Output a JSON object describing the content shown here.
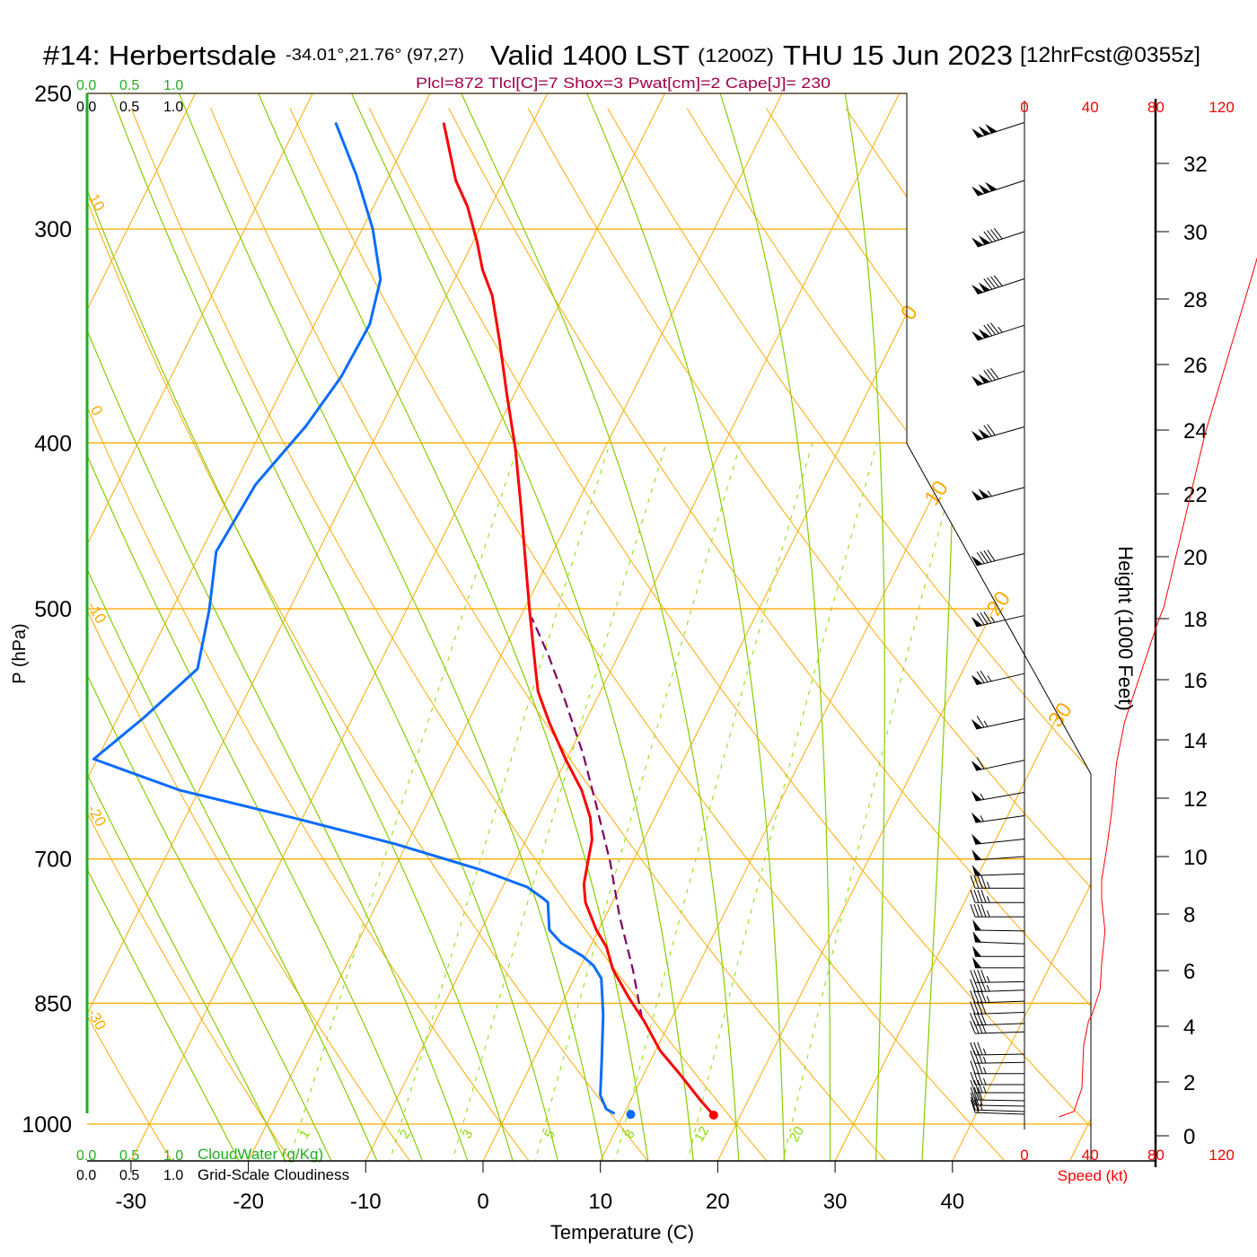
{
  "title": {
    "station": "#14: Herbertsdale",
    "coords": "-34.01°,21.76° (97,27)",
    "valid": "Valid 1400 LST",
    "utc": "(1200Z)",
    "date": "THU 15 Jun 2023",
    "forecast": "[12hrFcst@0355z]"
  },
  "indices": "Plcl=872 Tlcl[C]=7 Shox=3 Pwat[cm]=2 Cape[J]= 230",
  "cloud_scale": {
    "cloudwater_ticks": [
      "0.0",
      "0.5",
      "1.0"
    ],
    "cloudiness_ticks": [
      "0.0",
      "0.5",
      "1.0"
    ],
    "cloudwater_label": "CloudWater (g/Kg)",
    "cloudiness_label": "Grid-Scale Cloudiness"
  },
  "colors": {
    "temperature": "#ff0000",
    "dewpoint": "#0a6cff",
    "parcel": "#800060",
    "isotherm": "#ffaa00",
    "moist_adiabat": "#88cc00",
    "mixing_ratio": "#88dd00",
    "cloudwater": "#1fae1f",
    "indices": "#a0004a",
    "speed": "#ff0000"
  },
  "chart_data": {
    "type": "line",
    "subtype": "skew-t log-p",
    "xlabel": "Temperature (C)",
    "ylabel": "P (hPa)",
    "xlim_at_bottom": [
      -34,
      52
    ],
    "ylim": [
      1050,
      250
    ],
    "pressure_ticks": [
      "250",
      "300",
      "400",
      "500",
      "700",
      "850",
      "1000"
    ],
    "temp_ticks": [
      "-30",
      "-20",
      "-10",
      "0",
      "10",
      "20",
      "30",
      "40"
    ],
    "isotherm_labels": [
      "0",
      "10",
      "20",
      "30"
    ],
    "dry_adiabat_labels": [
      "10",
      "0",
      "-10",
      "-20",
      "-30"
    ],
    "mixing_ratio_labels": [
      "1",
      "2",
      "3",
      "5",
      "8",
      "12",
      "20"
    ],
    "temperature": {
      "name": "Temperature",
      "p": [
        988,
        968,
        933,
        906,
        871,
        844,
        812,
        788,
        770,
        742,
        724,
        703,
        682,
        662,
        638,
        612,
        583,
        559,
        542,
        501,
        472,
        434,
        403,
        375,
        349,
        328,
        317,
        305,
        291,
        281,
        260
      ],
      "t": [
        17.7,
        15.9,
        12.9,
        10.4,
        7.8,
        5.5,
        2.9,
        1.4,
        -0.2,
        -2.3,
        -3.2,
        -3.8,
        -4.4,
        -5.5,
        -7.4,
        -10.1,
        -13.0,
        -15.3,
        -16.5,
        -19.5,
        -21.7,
        -24.8,
        -27.6,
        -30.6,
        -33.5,
        -36.1,
        -38.0,
        -39.7,
        -42.0,
        -44.1,
        -47.6
      ]
    },
    "dewpoint": {
      "name": "Dewpoint",
      "p": [
        986,
        980,
        962,
        917,
        863,
        822,
        808,
        798,
        784,
        770,
        742,
        738,
        727,
        710,
        686,
        663,
        638,
        612,
        579,
        542,
        501,
        463,
        423,
        391,
        366,
        341,
        321,
        300,
        279,
        260
      ],
      "t": [
        9.2,
        8.3,
        7.2,
        5.8,
        4.0,
        2.3,
        1.1,
        -0.2,
        -2.6,
        -4.2,
        -5.5,
        -6.1,
        -7.9,
        -12.7,
        -21.0,
        -30.5,
        -41.7,
        -50.3,
        -47.8,
        -45.3,
        -46.8,
        -48.7,
        -48.2,
        -46.4,
        -45.5,
        -45.3,
        -46.3,
        -49.1,
        -52.8,
        -56.8
      ]
    },
    "parcel": {
      "name": "Parcel",
      "p": [
        868,
        812,
        756,
        703,
        654,
        608,
        566,
        532,
        506
      ],
      "t": [
        7.5,
        4.6,
        1.2,
        -1.9,
        -5.3,
        -8.8,
        -12.6,
        -16.0,
        -19.0
      ]
    },
    "surface_temperature": {
      "p": 988,
      "t": 17.7
    },
    "surface_dewpoint": {
      "p": 987,
      "t": 10.6
    },
    "wind": {
      "speed_label": "Speed (kt)",
      "height_label": "Height (1000 Feet)",
      "speed_ticks": [
        "0",
        "40",
        "80",
        "120"
      ],
      "height_ticks": [
        "0",
        "2",
        "4",
        "6",
        "8",
        "10",
        "12",
        "14",
        "16",
        "18",
        "20",
        "22",
        "24",
        "26",
        "28",
        "30",
        "32"
      ],
      "speed_profile": {
        "height_kft": [
          0.7,
          0.9,
          1.77,
          3.3,
          4.2,
          4.4,
          5.3,
          6.25,
          7.4,
          8.5,
          9.2,
          10.25,
          11.5,
          13.2,
          14.6,
          17.7,
          18.4,
          23.9,
          29.1,
          30.0
        ],
        "speed_kt": [
          21,
          30,
          35,
          36,
          39,
          41,
          46,
          47,
          49,
          47,
          47,
          50,
          53,
          56,
          61,
          80,
          85,
          110,
          141,
          146
        ]
      },
      "barbs": {
        "height_kft": [
          33.2,
          31.5,
          30.0,
          28.6,
          27.2,
          25.8,
          24.1,
          22.2,
          20.1,
          18.1,
          16.2,
          14.7,
          13.3,
          12.2,
          11.4,
          10.6,
          10.0,
          9.4,
          8.9,
          8.4,
          7.9,
          7.4,
          6.95,
          6.5,
          6.1,
          5.6,
          5.3,
          4.9,
          4.5,
          4.1,
          3.8,
          3.0,
          2.7,
          2.3,
          1.9,
          1.6,
          1.3,
          1.1,
          0.9,
          0.8
        ],
        "speed_kt": [
          150,
          150,
          140,
          140,
          135,
          130,
          120,
          105,
          90,
          85,
          75,
          65,
          60,
          55,
          55,
          50,
          50,
          50,
          45,
          45,
          45,
          50,
          50,
          50,
          50,
          45,
          45,
          45,
          40,
          40,
          40,
          35,
          35,
          35,
          35,
          35,
          30,
          30,
          25,
          20
        ],
        "direction_deg": [
          252,
          252,
          252,
          252,
          252,
          253,
          254,
          255,
          256,
          257,
          257,
          258,
          258,
          260,
          262,
          264,
          266,
          268,
          270,
          270,
          270,
          271,
          272,
          270,
          270,
          269,
          268,
          268,
          268,
          268,
          268,
          269,
          269,
          270,
          270,
          270,
          271,
          271,
          272,
          272
        ]
      }
    }
  }
}
